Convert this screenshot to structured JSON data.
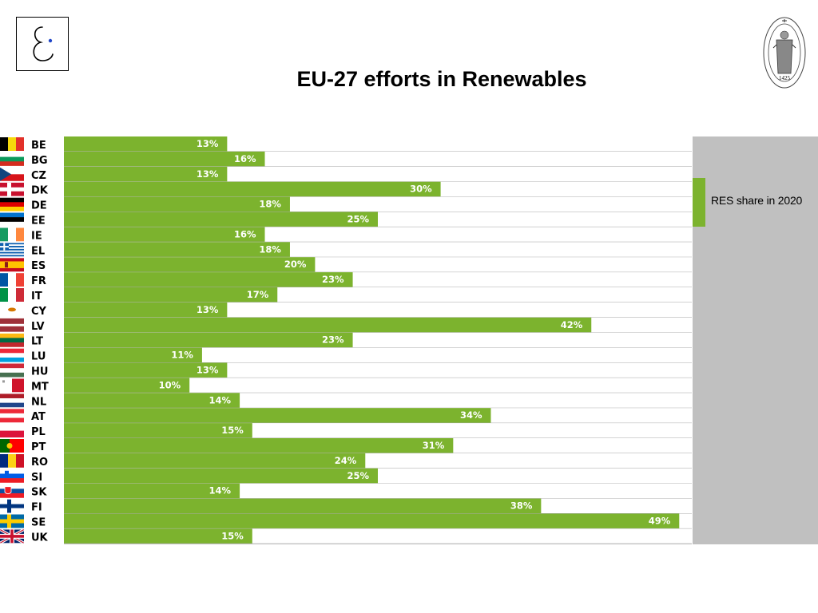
{
  "title": "EU-27 efforts in Renewables",
  "seal": {
    "year": "1425"
  },
  "colors": {
    "bar": "#7cb32e",
    "panel": "#c0c0c0",
    "row_line": "#a9a9a9",
    "bar_label": "#ffffff",
    "country_label": "#000000"
  },
  "chart_data": {
    "type": "bar",
    "orientation": "horizontal",
    "title": "EU-27 efforts in Renewables",
    "categories": [
      "BE",
      "BG",
      "CZ",
      "DK",
      "DE",
      "EE",
      "IE",
      "EL",
      "ES",
      "FR",
      "IT",
      "CY",
      "LV",
      "LT",
      "LU",
      "HU",
      "MT",
      "NL",
      "AT",
      "PL",
      "PT",
      "RO",
      "SI",
      "SK",
      "FI",
      "SE",
      "UK"
    ],
    "series": [
      {
        "name": "RES share in 2020",
        "values": [
          13,
          16,
          13,
          30,
          18,
          25,
          16,
          18,
          20,
          23,
          17,
          13,
          42,
          23,
          11,
          13,
          10,
          14,
          34,
          15,
          31,
          24,
          25,
          14,
          38,
          49,
          15
        ],
        "labels": [
          "13%",
          "16%",
          "13%",
          "30%",
          "18%",
          "25%",
          "16%",
          "18%",
          "20%",
          "23%",
          "17%",
          "13%",
          "42%",
          "23%",
          "11%",
          "13%",
          "10%",
          "14%",
          "34%",
          "15%",
          "31%",
          "24%",
          "25%",
          "14%",
          "38%",
          "49%",
          "15%"
        ]
      }
    ],
    "xlim": [
      0,
      50
    ],
    "grid": false,
    "legend": "right"
  }
}
